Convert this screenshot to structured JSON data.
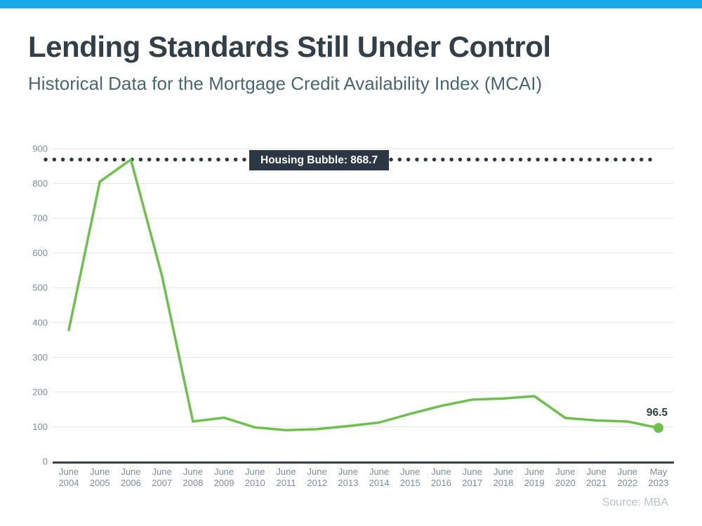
{
  "page": {
    "title": "Lending Standards Still Under Control",
    "subtitle": "Historical Data for the Mortgage Credit Availability Index (MCAI)",
    "source": "Source: MBA"
  },
  "colors": {
    "accent_bar": "#17a9e8",
    "line": "#6dbf4e",
    "annotation_bg": "#2b3844",
    "annotation_text": "#ffffff",
    "axis_text": "#7e8c9c",
    "grid": "#e5e5e5",
    "axis_line": "#333e48",
    "title_text": "#333f48",
    "subtitle_text": "#4a6672",
    "source_text": "#b5c3cd"
  },
  "chart_data": {
    "type": "line",
    "title": "Historical Data for the Mortgage Credit Availability Index (MCAI)",
    "xlabel": "",
    "ylabel": "",
    "categories": [
      "June 2004",
      "June 2005",
      "June 2006",
      "June 2007",
      "June 2008",
      "June 2009",
      "June 2010",
      "June 2011",
      "June 2012",
      "June 2013",
      "June 2014",
      "June 2015",
      "June 2016",
      "June 2017",
      "June 2018",
      "June 2019",
      "June 2020",
      "June 2021",
      "June 2022",
      "May 2023"
    ],
    "values": [
      378,
      805,
      868.7,
      535,
      115,
      126,
      98,
      90,
      93,
      102,
      112,
      137,
      160,
      178,
      181,
      188,
      125,
      118,
      115,
      96.5
    ],
    "ylim": [
      0,
      900
    ],
    "ytick_interval": 100,
    "grid": true,
    "legend": "none",
    "reference_line": {
      "value": 868.7,
      "label": "Housing Bubble: 868.7",
      "style": "dotted"
    },
    "end_label": "96.5"
  }
}
